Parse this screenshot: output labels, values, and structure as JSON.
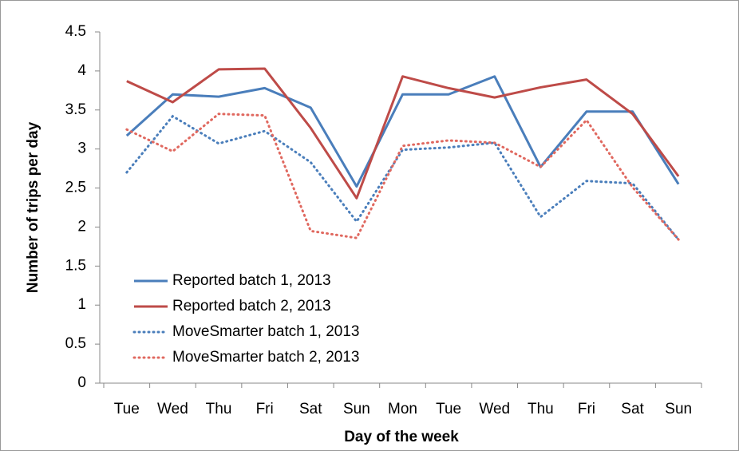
{
  "chart_data": {
    "type": "line",
    "x_label": "Day of the week",
    "y_label": "Number of trips per  day",
    "categories": [
      "Tue",
      "Wed",
      "Thu",
      "Fri",
      "Sat",
      "Sun",
      "Mon",
      "Tue",
      "Wed",
      "Thu",
      "Fri",
      "Sat",
      "Sun"
    ],
    "series": [
      {
        "name": "Reported batch 1, 2013",
        "color": "#4a7ebb",
        "style": "solid",
        "values": [
          3.17,
          3.7,
          3.67,
          3.78,
          3.53,
          2.52,
          3.7,
          3.7,
          3.93,
          2.77,
          3.48,
          3.48,
          2.55
        ]
      },
      {
        "name": "Reported batch 2, 2013",
        "color": "#be4b48",
        "style": "solid",
        "values": [
          3.87,
          3.6,
          4.02,
          4.03,
          3.27,
          2.37,
          3.93,
          3.78,
          3.66,
          3.79,
          3.89,
          3.45,
          2.65
        ]
      },
      {
        "name": "MoveSmarter batch 1, 2013",
        "color": "#4a7ebb",
        "style": "dotted",
        "values": [
          2.7,
          3.42,
          3.07,
          3.23,
          2.83,
          2.07,
          2.99,
          3.02,
          3.08,
          2.13,
          2.59,
          2.56,
          1.84
        ]
      },
      {
        "name": "MoveSmarter batch 2, 2013",
        "color": "#e0685f",
        "style": "dotted",
        "values": [
          3.25,
          2.97,
          3.45,
          3.43,
          1.95,
          1.86,
          3.04,
          3.11,
          3.08,
          2.77,
          3.37,
          2.51,
          1.84
        ]
      }
    ],
    "ylim": [
      0,
      4.5
    ],
    "yticks": [
      0,
      0.5,
      1,
      1.5,
      2,
      2.5,
      3,
      3.5,
      4,
      4.5
    ],
    "grid": false,
    "legend": "lower-left"
  }
}
